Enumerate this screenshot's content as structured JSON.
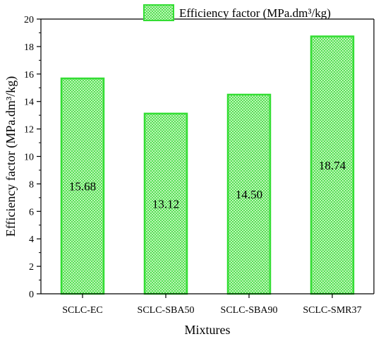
{
  "chart_data": {
    "type": "bar",
    "categories": [
      "SCLC-EC",
      "SCLC-SBA50",
      "SCLC-SBA90",
      "SCLC-SMR37"
    ],
    "series": [
      {
        "name": "Efficiency factor (MPa.dm³/kg)",
        "values": [
          15.68,
          13.12,
          14.5,
          18.74
        ],
        "labels": [
          "15.68",
          "13.12",
          "14.50",
          "18.74"
        ]
      }
    ],
    "title": "",
    "xlabel": "Mixtures",
    "ylabel": "Efficiency factor (MPa.dm³/kg)",
    "ylim": [
      0,
      20
    ],
    "yticks": [
      "0",
      "2",
      "4",
      "6",
      "8",
      "10",
      "12",
      "14",
      "16",
      "18",
      "20"
    ],
    "grid": false,
    "legend_position": "top-right",
    "colors": {
      "bar_fill": "#c9f7c0",
      "bar_stroke": "#33dd33",
      "hatch": "#3fdc3f"
    }
  }
}
